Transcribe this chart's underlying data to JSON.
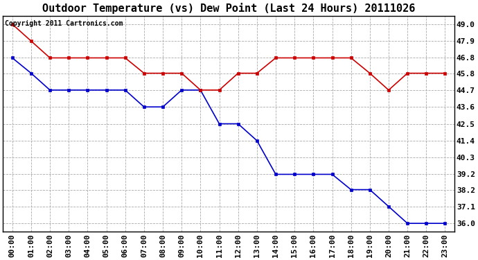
{
  "title": "Outdoor Temperature (vs) Dew Point (Last 24 Hours) 20111026",
  "copyright_text": "Copyright 2011 Cartronics.com",
  "x_labels": [
    "00:00",
    "01:00",
    "02:00",
    "03:00",
    "04:00",
    "05:00",
    "06:00",
    "07:00",
    "08:00",
    "09:00",
    "10:00",
    "11:00",
    "12:00",
    "13:00",
    "14:00",
    "15:00",
    "16:00",
    "17:00",
    "18:00",
    "19:00",
    "20:00",
    "21:00",
    "22:00",
    "23:00"
  ],
  "temp_data": [
    46.8,
    45.8,
    44.7,
    44.7,
    44.7,
    44.7,
    44.7,
    43.6,
    43.6,
    44.7,
    44.7,
    42.5,
    42.5,
    41.4,
    39.2,
    39.2,
    39.2,
    39.2,
    38.2,
    38.2,
    37.1,
    36.0,
    36.0,
    36.0
  ],
  "dew_data": [
    49.0,
    47.9,
    46.8,
    46.8,
    46.8,
    46.8,
    46.8,
    45.8,
    45.8,
    45.8,
    44.7,
    44.7,
    45.8,
    45.8,
    46.8,
    46.8,
    46.8,
    46.8,
    46.8,
    45.8,
    44.7,
    45.8,
    45.8,
    45.8
  ],
  "temp_color": "#0000cc",
  "dew_color": "#cc0000",
  "ylim_min": 35.45,
  "ylim_max": 49.55,
  "y_ticks": [
    36.0,
    37.1,
    38.2,
    39.2,
    40.3,
    41.4,
    42.5,
    43.6,
    44.7,
    45.8,
    46.8,
    47.9,
    49.0
  ],
  "bg_color": "#ffffff",
  "plot_bg_color": "#ffffff",
  "grid_color": "#aaaaaa",
  "title_fontsize": 11,
  "tick_fontsize": 8,
  "copyright_fontsize": 7
}
